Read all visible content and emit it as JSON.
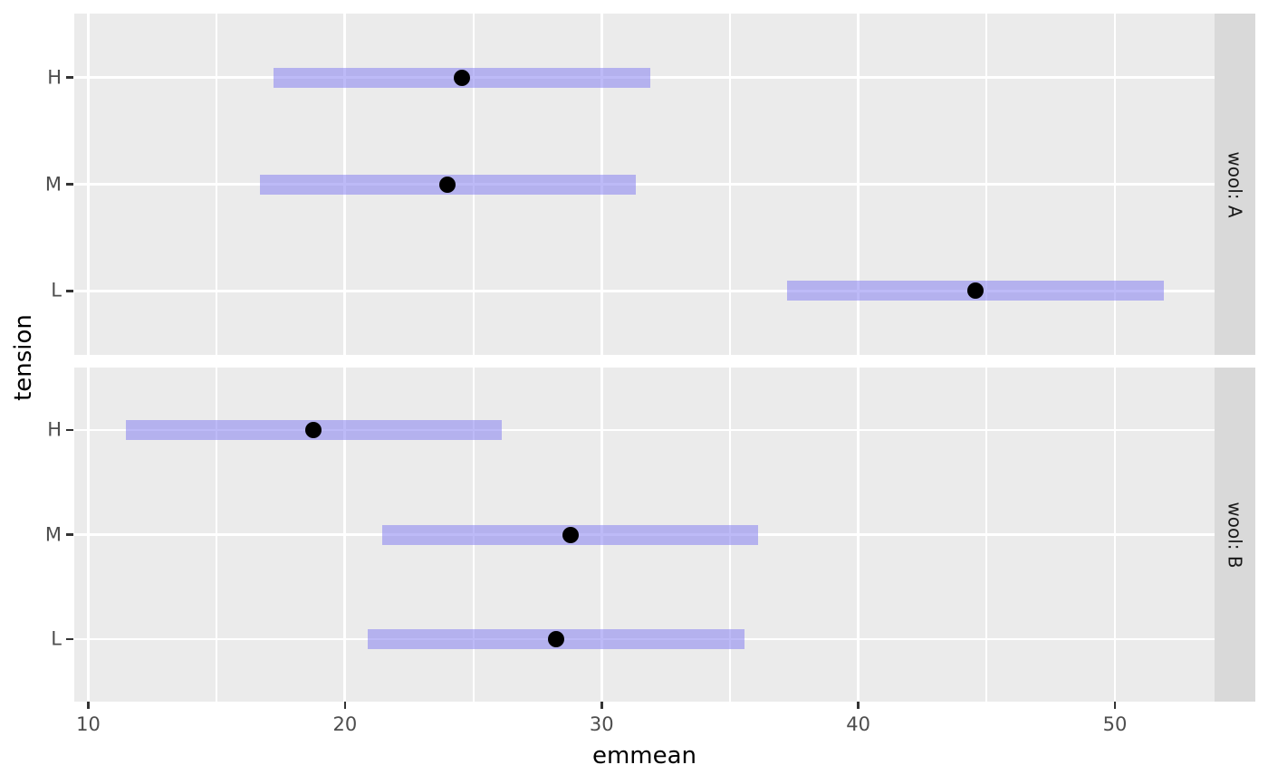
{
  "chart_data": {
    "type": "pointrange",
    "title": "",
    "xlabel": "emmean",
    "ylabel": "tension",
    "x_ticks": [
      10,
      20,
      30,
      40,
      50
    ],
    "x_minor_ticks": [
      15,
      25,
      35,
      45
    ],
    "xlim": [
      9.45,
      53.88
    ],
    "y_categories": [
      "H",
      "M",
      "L"
    ],
    "grid": "major and minor vertical, major horizontal, white on grey panel",
    "legend_position": "none",
    "facet_variable": "wool",
    "facets": [
      {
        "label": "wool: A",
        "rows": [
          {
            "tension": "H",
            "emmean": 24.56,
            "lower_CL": 17.22,
            "upper_CL": 31.89
          },
          {
            "tension": "M",
            "emmean": 24.0,
            "lower_CL": 16.67,
            "upper_CL": 31.33
          },
          {
            "tension": "L",
            "emmean": 44.56,
            "lower_CL": 37.22,
            "upper_CL": 51.89
          }
        ]
      },
      {
        "label": "wool: B",
        "rows": [
          {
            "tension": "H",
            "emmean": 18.78,
            "lower_CL": 11.45,
            "upper_CL": 26.11
          },
          {
            "tension": "M",
            "emmean": 28.78,
            "lower_CL": 21.45,
            "upper_CL": 36.11
          },
          {
            "tension": "L",
            "emmean": 28.22,
            "lower_CL": 20.89,
            "upper_CL": 35.56
          }
        ]
      }
    ],
    "colors": {
      "panel_bg": "#ebebeb",
      "strip_bg": "#d9d9d9",
      "strip_text": "#1a1a1a",
      "gridline": "#ffffff",
      "ci_bar": "rgba(135,130,241,0.55)",
      "point": "#000000",
      "tick_mark": "#333333",
      "tick_label": "#4d4d4d",
      "axis_title": "#000000"
    }
  }
}
